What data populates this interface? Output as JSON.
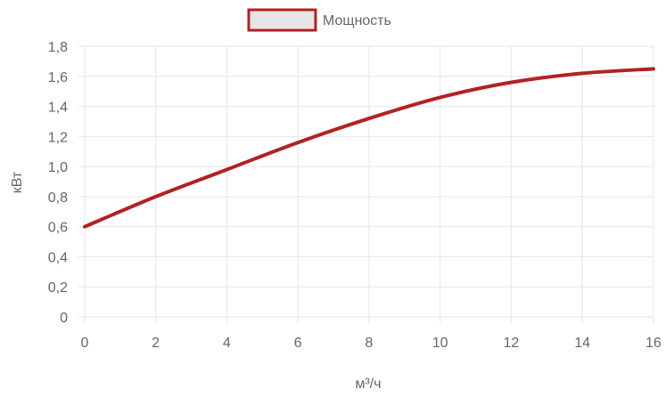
{
  "chart_data": {
    "type": "line",
    "title": "",
    "xlabel": "м³/ч",
    "ylabel": "кВт",
    "xlim": [
      0,
      16
    ],
    "ylim": [
      0,
      1.8
    ],
    "x_ticks": [
      0,
      2,
      4,
      6,
      8,
      10,
      12,
      14,
      16
    ],
    "y_ticks": [
      0,
      0.2,
      0.4,
      0.6,
      0.8,
      1.0,
      1.2,
      1.4,
      1.6,
      1.8
    ],
    "x_tick_labels": [
      "0",
      "2",
      "4",
      "6",
      "8",
      "10",
      "12",
      "14",
      "16"
    ],
    "y_tick_labels": [
      "0",
      "0,2",
      "0,4",
      "0,6",
      "0,8",
      "1,0",
      "1,2",
      "1,4",
      "1,6",
      "1,8"
    ],
    "grid": true,
    "legend_position": "top-center",
    "series": [
      {
        "name": "Мощность",
        "color": "#b22222",
        "fill_color": "#e6e6e6",
        "x": [
          0,
          2,
          4,
          6,
          8,
          10,
          12,
          14,
          16
        ],
        "y": [
          0.6,
          0.8,
          0.98,
          1.16,
          1.32,
          1.46,
          1.56,
          1.62,
          1.65
        ]
      }
    ]
  }
}
